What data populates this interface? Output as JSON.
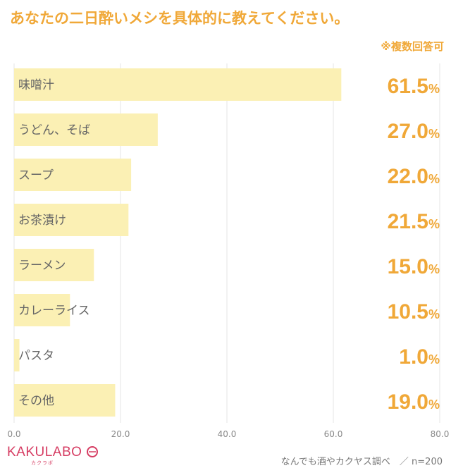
{
  "header": {
    "title": "あなたの二日酔いメシを具体的に教えてください。",
    "subtitle": "※複数回答可"
  },
  "footer": {
    "logo": "KAKULABO",
    "logo_sub": "カクラボ",
    "source": "なんでも酒やカクヤス調べ　／ n=200"
  },
  "colors": {
    "accent": "#f0a838",
    "bar": "#fbf0b4",
    "logo": "#d63d63"
  },
  "chart_data": {
    "type": "bar",
    "orientation": "horizontal",
    "categories": [
      "味噌汁",
      "うどん、そば",
      "スープ",
      "お茶漬け",
      "ラーメン",
      "カレーライス",
      "パスタ",
      "その他"
    ],
    "values": [
      61.5,
      27.0,
      22.0,
      21.5,
      15.0,
      10.5,
      1.0,
      19.0
    ],
    "value_labels": [
      "61.5",
      "27.0",
      "22.0",
      "21.5",
      "15.0",
      "10.5",
      "1.0",
      "19.0"
    ],
    "value_suffix": "%",
    "xlim": [
      0,
      80
    ],
    "xticks": [
      "0.0",
      "20.0",
      "40.0",
      "60.0",
      "80.0"
    ],
    "grid": true
  }
}
